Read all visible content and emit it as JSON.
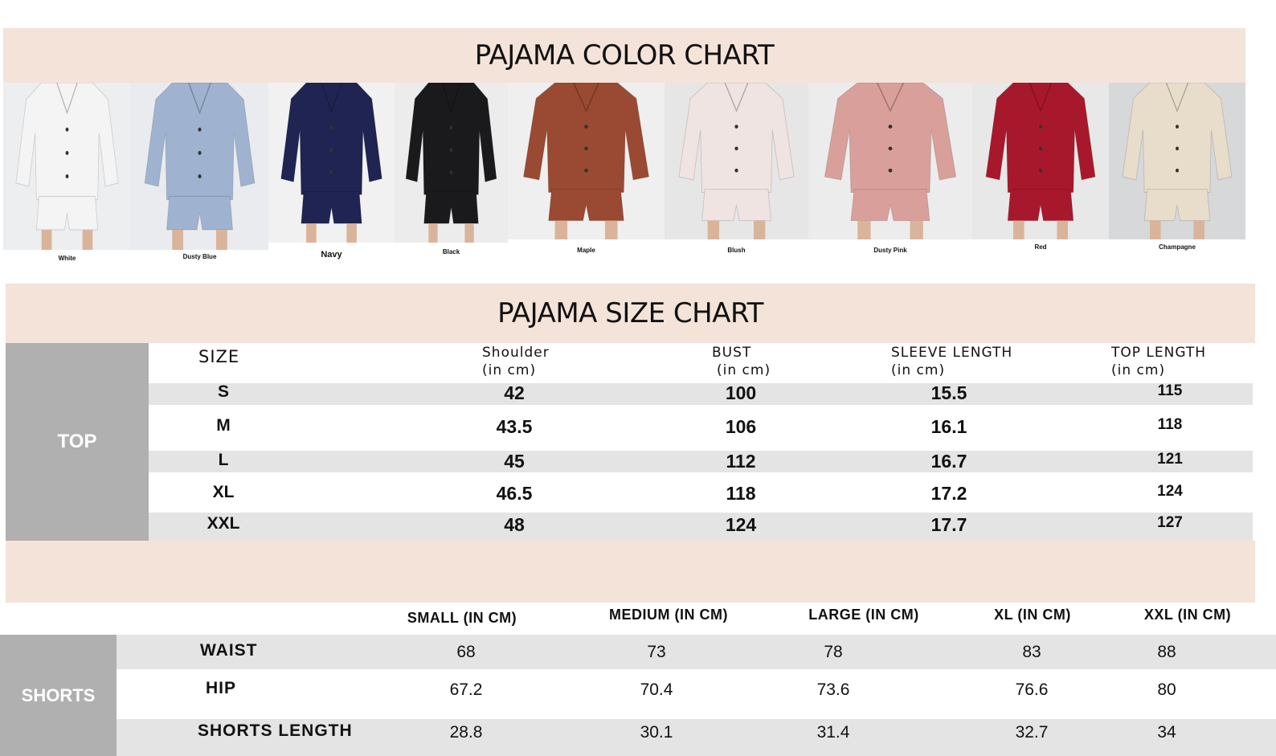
{
  "color_chart": {
    "title": "PAJAMA COLOR CHART",
    "colors": [
      {
        "label": "White",
        "swatch": "#f4f4f4",
        "bg": "#eceef0"
      },
      {
        "label": "Dusty Blue",
        "swatch": "#9fb3d1",
        "bg": "#e9ebee"
      },
      {
        "label": "Navy",
        "swatch": "#1f2452",
        "bg": "#f1f1f1"
      },
      {
        "label": "Black",
        "swatch": "#1a1a1c",
        "bg": "#ececec"
      },
      {
        "label": "Maple",
        "swatch": "#9a4a32",
        "bg": "#efefef"
      },
      {
        "label": "Blush",
        "swatch": "#efe4e1",
        "bg": "#e6e6e6"
      },
      {
        "label": "Dusty Pink",
        "swatch": "#d9a09b",
        "bg": "#ececec"
      },
      {
        "label": "Red",
        "swatch": "#a8182c",
        "bg": "#e8e8e8"
      },
      {
        "label": "Champagne",
        "swatch": "#e8dccb",
        "bg": "#d6d8da"
      }
    ]
  },
  "size_chart": {
    "title": "PAJAMA SIZE CHART",
    "top": {
      "label": "TOP",
      "headers": [
        [
          "SIZE",
          ""
        ],
        [
          "Shoulder",
          "(in cm)"
        ],
        [
          "BUST",
          "(in cm)"
        ],
        [
          "SLEEVE LENGTH",
          "(in cm)"
        ],
        [
          "TOP LENGTH",
          "(in cm)"
        ]
      ],
      "rows": [
        [
          "S",
          "42",
          "100",
          "15.5",
          "115"
        ],
        [
          "M",
          "43.5",
          "106",
          "16.1",
          "118"
        ],
        [
          "L",
          "45",
          "112",
          "16.7",
          "121"
        ],
        [
          "XL",
          "46.5",
          "118",
          "17.2",
          "124"
        ],
        [
          "XXL",
          "48",
          "124",
          "17.7",
          "127"
        ]
      ]
    },
    "shorts": {
      "label": "SHORTS",
      "headers": [
        "SMALL (IN CM)",
        "MEDIUM (IN CM)",
        "LARGE (IN CM)",
        "XL (IN CM)",
        "XXL (IN CM)"
      ],
      "rows": [
        {
          "label": "WAIST",
          "values": [
            "68",
            "73",
            "78",
            "83",
            "88"
          ]
        },
        {
          "label": "HIP",
          "values": [
            "67.2",
            "70.4",
            "73.6",
            "76.6",
            "80"
          ]
        },
        {
          "label": "SHORTS LENGTH",
          "values": [
            "28.8",
            "30.1",
            "31.4",
            "32.7",
            "34"
          ]
        }
      ]
    }
  }
}
